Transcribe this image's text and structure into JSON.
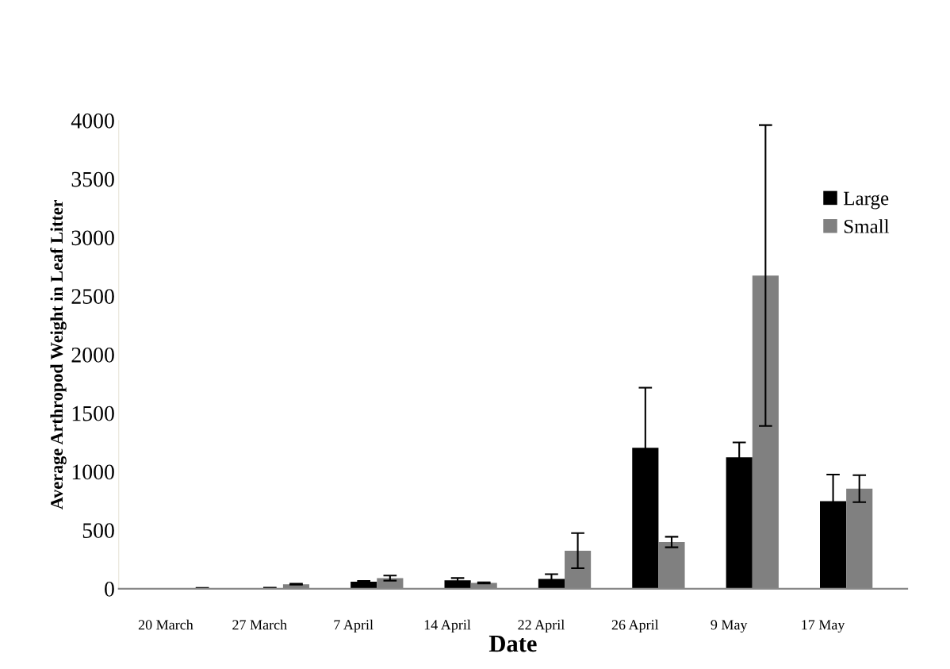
{
  "chart_data": {
    "type": "bar",
    "xlabel": "Date",
    "ylabel": "Average Arthropod Weight in Leaf Litter",
    "categories": [
      "20 March",
      "27 March",
      "7 April",
      "14 April",
      "22 April",
      "26 April",
      "9 May",
      "17 May"
    ],
    "series": [
      {
        "name": "Large",
        "color": "#000000",
        "values": [
          null,
          5,
          60,
          72,
          84,
          1203,
          1123,
          748
        ],
        "errors": [
          null,
          3,
          6,
          19,
          40,
          514,
          126,
          227
        ]
      },
      {
        "name": "Small",
        "color": "#808080",
        "values": [
          4,
          38,
          91,
          50,
          325,
          399,
          2675,
          855
        ],
        "errors": [
          3,
          4,
          22,
          5,
          150,
          45,
          1285,
          115
        ]
      }
    ],
    "ylim": [
      0,
      4000
    ],
    "yticks": [
      0,
      500,
      1000,
      1500,
      2000,
      2500,
      3000,
      3500,
      4000
    ],
    "grid": false,
    "legend": "right"
  }
}
